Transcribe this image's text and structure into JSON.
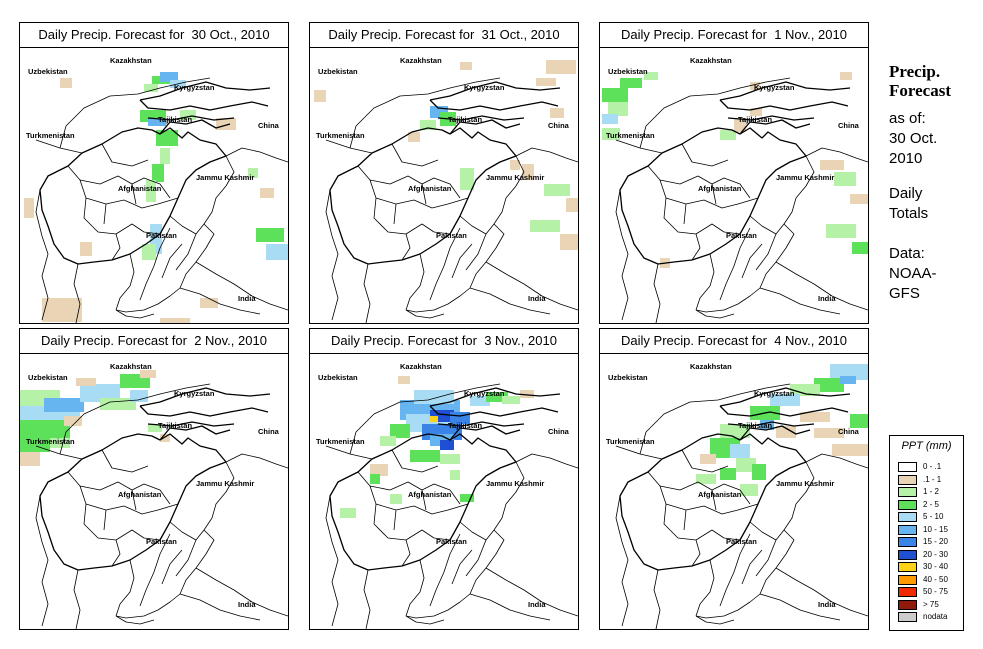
{
  "panels": [
    {
      "title": "Daily Precip. Forecast for  30 Oct., 2010"
    },
    {
      "title": "Daily Precip. Forecast for  31 Oct., 2010"
    },
    {
      "title": "Daily Precip. Forecast for  1 Nov., 2010"
    },
    {
      "title": "Daily Precip. Forecast for  2 Nov., 2010"
    },
    {
      "title": "Daily Precip. Forecast for  3 Nov., 2010"
    },
    {
      "title": "Daily Precip. Forecast for  4 Nov., 2010"
    }
  ],
  "map_labels": {
    "kazakhstan": "Kazakhstan",
    "uzbekistan": "Uzbekistan",
    "kyrgyzstan": "Kyrgyzstan",
    "tajikistan": "Tajikistan",
    "turkmenistan": "Turkmenistan",
    "china": "China",
    "jammu_kashmir": "Jammu Kashmir",
    "afghanistan": "Afghanistan",
    "pakistan": "Pakistan",
    "india": "India"
  },
  "sidebar": {
    "title_line1": "Precip.",
    "title_line2": "Forecast",
    "asof_line1": "as of:",
    "asof_line2": "30 Oct.",
    "asof_line3": "2010",
    "daily_line1": "Daily",
    "daily_line2": "Totals",
    "data_line1": "Data:",
    "data_line2": "NOAA-",
    "data_line3": "GFS"
  },
  "legend": {
    "title": "PPT (mm)",
    "items": [
      {
        "label": "0 - .1",
        "color": "#ffffff"
      },
      {
        "label": ".1 - 1",
        "color": "#e9d5b5"
      },
      {
        "label": "1 - 2",
        "color": "#b5f2a8"
      },
      {
        "label": "2 - 5",
        "color": "#5de05a"
      },
      {
        "label": "5 - 10",
        "color": "#a8dcf5"
      },
      {
        "label": "10 - 15",
        "color": "#66b4f0"
      },
      {
        "label": "15 - 20",
        "color": "#3a84e8"
      },
      {
        "label": "20 - 30",
        "color": "#1f4fd2"
      },
      {
        "label": "30 - 40",
        "color": "#ffd21a"
      },
      {
        "label": "40 - 50",
        "color": "#ff9a00"
      },
      {
        "label": "50 - 75",
        "color": "#f02a00"
      },
      {
        "label": "> 75",
        "color": "#8f1a0a"
      },
      {
        "label": "nodata",
        "color": "#cccccc"
      }
    ]
  }
}
